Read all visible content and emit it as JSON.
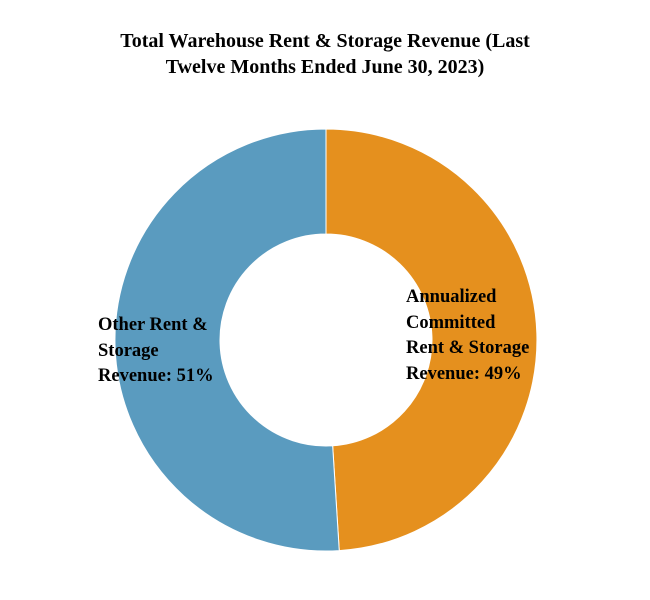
{
  "chart_data": {
    "type": "pie",
    "variant": "donut",
    "title_lines": [
      "Total Warehouse Rent & Storage Revenue (Last",
      "Twelve Months Ended June 30, 2023)"
    ],
    "slices": [
      {
        "name": "Annualized Committed Rent & Storage Revenue",
        "value": 49,
        "color": "#e5901e",
        "label_lines": [
          "Annualized",
          "Committed",
          "Rent & Storage",
          "Revenue: 49%"
        ]
      },
      {
        "name": "Other Rent & Storage Revenue",
        "value": 51,
        "color": "#5a9bbf",
        "label_lines": [
          "Other Rent &",
          "Storage",
          "Revenue: 51%"
        ]
      }
    ],
    "legend": "none",
    "start": "12 o'clock",
    "direction": "clockwise"
  }
}
